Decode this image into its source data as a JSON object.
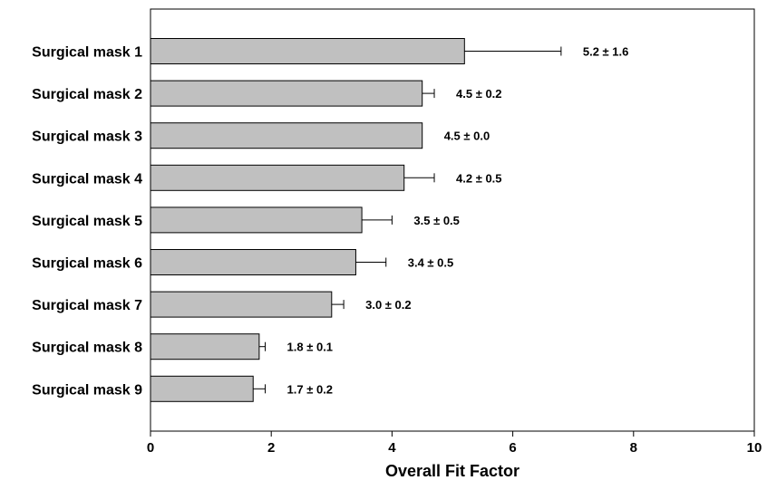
{
  "chart_data": {
    "type": "bar",
    "orientation": "horizontal",
    "categories": [
      "Surgical mask 1",
      "Surgical mask 2",
      "Surgical mask 3",
      "Surgical mask 4",
      "Surgical mask 5",
      "Surgical mask 6",
      "Surgical mask 7",
      "Surgical mask 8",
      "Surgical mask 9"
    ],
    "values": [
      5.2,
      4.5,
      4.5,
      4.2,
      3.5,
      3.4,
      3.0,
      1.8,
      1.7
    ],
    "errors": [
      1.6,
      0.2,
      0.0,
      0.5,
      0.5,
      0.5,
      0.2,
      0.1,
      0.2
    ],
    "data_labels": [
      "5.2 ± 1.6",
      "4.5 ± 0.2",
      "4.5 ± 0.0",
      "4.2 ± 0.5",
      "3.5 ± 0.5",
      "3.4 ± 0.5",
      "3.0 ± 0.2",
      "1.8 ± 0.1",
      "1.7 ± 0.2"
    ],
    "title": "",
    "xlabel": "Overall Fit Factor",
    "ylabel": "",
    "xlim": [
      0,
      10
    ],
    "xticks": [
      0,
      2,
      4,
      6,
      8,
      10
    ],
    "xtick_labels": [
      "0",
      "2",
      "4",
      "6",
      "8",
      "10"
    ],
    "bar_color": "#c0c0c0",
    "grid": false,
    "legend": "none"
  }
}
